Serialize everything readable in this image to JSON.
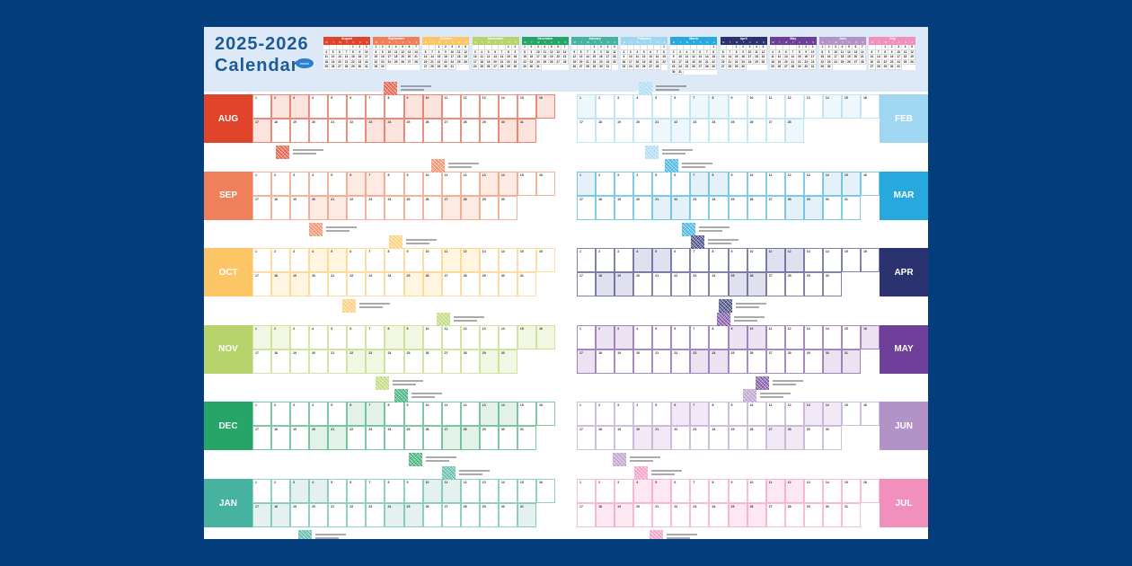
{
  "title": {
    "line1": "2025-2026",
    "line2": "Calendar",
    "logo": "twinkl"
  },
  "weekday_labels": [
    "M",
    "T",
    "W",
    "T",
    "F",
    "S",
    "S"
  ],
  "months": [
    {
      "name": "August",
      "label": "AUG",
      "year": 2025,
      "month": 8,
      "color": "#e0452b",
      "tint": "#fbe4de"
    },
    {
      "name": "September",
      "label": "SEP",
      "year": 2025,
      "month": 9,
      "color": "#f08059",
      "tint": "#fdebe3"
    },
    {
      "name": "October",
      "label": "OCT",
      "year": 2025,
      "month": 10,
      "color": "#fcc667",
      "tint": "#fff5e1"
    },
    {
      "name": "November",
      "label": "NOV",
      "year": 2025,
      "month": 11,
      "color": "#b6d46b",
      "tint": "#f2f7e4"
    },
    {
      "name": "December",
      "label": "DEC",
      "year": 2025,
      "month": 12,
      "color": "#25a566",
      "tint": "#e3f2e8"
    },
    {
      "name": "January",
      "label": "JAN",
      "year": 2026,
      "month": 1,
      "color": "#46b3a0",
      "tint": "#e5f1ee"
    },
    {
      "name": "February",
      "label": "FEB",
      "year": 2026,
      "month": 2,
      "color": "#9fd6f2",
      "tint": "#eef7fc"
    },
    {
      "name": "March",
      "label": "MAR",
      "year": 2026,
      "month": 3,
      "color": "#28a9dd",
      "tint": "#e4f1f9"
    },
    {
      "name": "April",
      "label": "APR",
      "year": 2026,
      "month": 4,
      "color": "#2b3270",
      "tint": "#e1e0ef"
    },
    {
      "name": "May",
      "label": "MAY",
      "year": 2026,
      "month": 5,
      "color": "#6e3f98",
      "tint": "#ebe3f2"
    },
    {
      "name": "June",
      "label": "JUN",
      "year": 2026,
      "month": 6,
      "color": "#b393c7",
      "tint": "#f1eaf6"
    },
    {
      "name": "July",
      "label": "JUL",
      "year": 2026,
      "month": 7,
      "color": "#f18fbd",
      "tint": "#fde8f1"
    }
  ],
  "icons": {
    "event_marker": "qr-code-icon",
    "connector": "curved-arrow-icon"
  }
}
